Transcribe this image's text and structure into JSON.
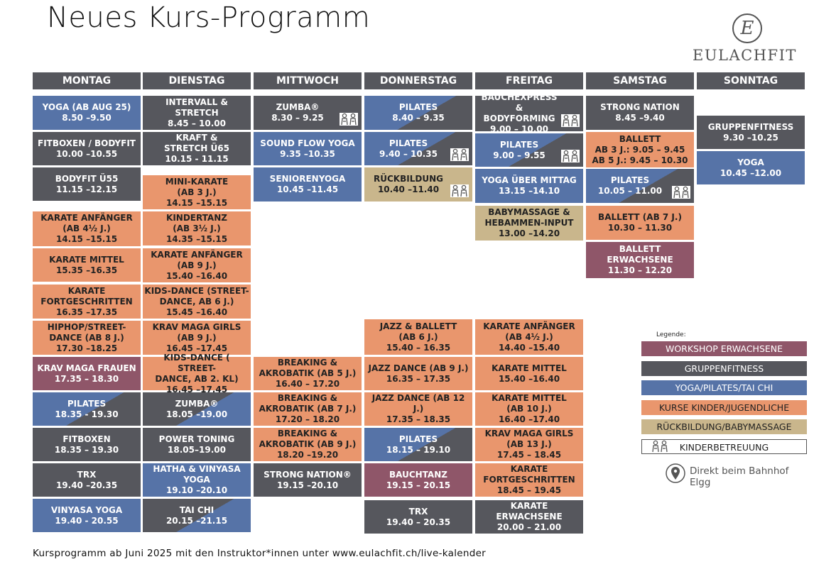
{
  "header": {
    "title": "Neues Kurs-Programm",
    "logo_letter": "E",
    "logo_name": "EULACHFIT"
  },
  "days": [
    {
      "name": "MONTAG",
      "classes": [
        {
          "lines": [
            "YOGA (AB AUG 25)",
            "8.50 –9.50"
          ],
          "color": "#5673a7"
        },
        {
          "lines": [
            "FITBOXEN / BODYFIT",
            "10.00 –10.55"
          ],
          "color": "#56575d"
        },
        {
          "lines": [
            "BODYFIT Ü55",
            "11.15 –12.15"
          ],
          "color": "#56575d"
        },
        {
          "lines": [
            "KARATE ANFÄNGER",
            "(AB 4½ J.)",
            "14.15 –15.15"
          ],
          "color": "#e9966d"
        },
        {
          "lines": [
            "KARATE MITTEL",
            "15.35 –16.35"
          ],
          "color": "#e9966d"
        },
        {
          "lines": [
            "KARATE",
            "FORTGESCHRITTEN",
            "16.35 –17.35"
          ],
          "color": "#e9966d"
        },
        {
          "lines": [
            "HIPHOP/STREET-",
            "DANCE (AB 8 J.)",
            "17.30 –18.25"
          ],
          "color": "#e9966d"
        },
        {
          "lines": [
            "KRAV MAGA FRAUEN",
            "17.35 – 18.30"
          ],
          "color": "#8f5669"
        },
        {
          "lines": [
            "PILATES",
            "18.35 - 19.30"
          ],
          "color": "#5673a7",
          "color2": "#56575d"
        },
        {
          "lines": [
            "FITBOXEN",
            "18.35 – 19.30"
          ],
          "color": "#56575d"
        },
        {
          "lines": [
            "TRX",
            "19.40 –20.35"
          ],
          "color": "#56575d"
        },
        {
          "lines": [
            "VINYASA YOGA",
            "19.40 - 20.55"
          ],
          "color": "#5673a7"
        }
      ]
    },
    {
      "name": "DIENSTAG",
      "classes": [
        {
          "lines": [
            "INTERVALL &",
            "STRETCH",
            "8.45 – 10.00"
          ],
          "color": "#56575d"
        },
        {
          "lines": [
            "KRAFT &",
            "STRETCH Ü65",
            "10.15 - 11.15"
          ],
          "color": "#56575d"
        },
        {
          "lines": [
            "MINI-KARATE",
            "(AB 3 J.)",
            "14.15 –15.15"
          ],
          "color": "#e9966d"
        },
        {
          "lines": [
            "KINDERTANZ",
            "(AB 3½ J.)",
            "14.35 –15.15"
          ],
          "color": "#e9966d"
        },
        {
          "lines": [
            "KARATE ANFÄNGER",
            "(AB 9 J.)",
            "15.40 –16.40"
          ],
          "color": "#e9966d"
        },
        {
          "lines": [
            "KIDS-DANCE (STREET-",
            "DANCE, AB 6 J.)",
            "15.45 –16.40"
          ],
          "color": "#e9966d"
        },
        {
          "lines": [
            "KRAV MAGA GIRLS",
            "(AB 9 J.)",
            "16.45 –17.45"
          ],
          "color": "#e9966d"
        },
        {
          "lines": [
            "KIDS-DANCE ( STREET-",
            "DANCE, AB 2. KL)",
            "16.45 –17.45"
          ],
          "color": "#e9966d"
        },
        {
          "lines": [
            "ZUMBA®",
            "18.05 –19.00"
          ],
          "color": "#56575d",
          "color2": "#5673a7"
        },
        {
          "lines": [
            "POWER TONING",
            "18.05–19.00"
          ],
          "color": "#56575d"
        },
        {
          "lines": [
            "HATHA & VINYASA",
            "YOGA",
            "19.10 –20.10"
          ],
          "color": "#5673a7"
        },
        {
          "lines": [
            "TAI CHI",
            "20.15 –21.15"
          ],
          "color": "#56575d",
          "color2": "#5673a7"
        }
      ]
    },
    {
      "name": "MITTWOCH",
      "classes": [
        {
          "lines": [
            "ZUMBA®",
            "8.30 – 9.25"
          ],
          "color": "#56575d",
          "kids": true
        },
        {
          "lines": [
            "SOUND FLOW YOGA",
            "9.35 –10.35"
          ],
          "color": "#5673a7"
        },
        {
          "lines": [
            "SENIORENYOGA",
            "10.45 –11.45"
          ],
          "color": "#5673a7"
        },
        {
          "lines": [
            "BREAKING &",
            "AKROBATIK (AB 5 J.)",
            "16.40 – 17.20"
          ],
          "color": "#e9966d"
        },
        {
          "lines": [
            "BREAKING &",
            "AKROBATIK (AB 7 J.)",
            "17.20 – 18.20"
          ],
          "color": "#e9966d"
        },
        {
          "lines": [
            "BREAKING &",
            "AKROBATIK (AB 9 J.)",
            "18.20 –19.20"
          ],
          "color": "#e9966d"
        },
        {
          "lines": [
            "STRONG NATION®",
            "19.15 –20.10"
          ],
          "color": "#56575d"
        }
      ]
    },
    {
      "name": "DONNERSTAG",
      "classes": [
        {
          "lines": [
            "PILATES",
            "8.40 – 9.35"
          ],
          "color": "#5673a7",
          "color2": "#56575d"
        },
        {
          "lines": [
            "PILATES",
            "9.40 – 10.35"
          ],
          "color": "#5673a7",
          "color2": "#56575d",
          "kids": true
        },
        {
          "lines": [
            "RÜCKBILDUNG",
            "10.40 –11.40"
          ],
          "color": "#c9b68c",
          "kids": true
        },
        {
          "lines": [
            "JAZZ & BALLETT",
            "(AB 6 J.)",
            "15.40 – 16.35"
          ],
          "color": "#e9966d"
        },
        {
          "lines": [
            "JAZZ DANCE (AB 9 J.)",
            "16.35 – 17.35"
          ],
          "color": "#e9966d"
        },
        {
          "lines": [
            "JAZZ DANCE (AB 12 J.)",
            "17.35 – 18.35"
          ],
          "color": "#e9966d"
        },
        {
          "lines": [
            "PILATES",
            "18.15 – 19.10"
          ],
          "color": "#5673a7",
          "color2": "#56575d"
        },
        {
          "lines": [
            "BAUCHTANZ",
            "19.15 – 20.15"
          ],
          "color": "#8f5669"
        },
        {
          "lines": [
            "TRX",
            "19.40 – 20.35"
          ],
          "color": "#56575d"
        }
      ]
    },
    {
      "name": "FREITAG",
      "classes": [
        {
          "lines": [
            "BAUCHEXPRESS &",
            "BODYFORMING",
            "9.00 – 10.00"
          ],
          "color": "#56575d",
          "kids": true
        },
        {
          "lines": [
            "PILATES",
            "9.00 – 9.55"
          ],
          "color": "#5673a7",
          "color2": "#56575d",
          "kids": true
        },
        {
          "lines": [
            "YOGA ÜBER MITTAG",
            "13.15 –14.10"
          ],
          "color": "#5673a7"
        },
        {
          "lines": [
            "BABYMASSAGE &",
            "HEBAMMEN-INPUT",
            "13.00 –14.20"
          ],
          "color": "#c9b68c"
        },
        {
          "lines": [
            "KARATE ANFÄNGER",
            "(AB 4½ J.)",
            "14.40 –15.40"
          ],
          "color": "#e9966d"
        },
        {
          "lines": [
            "KARATE MITTEL",
            "15.40 –16.40"
          ],
          "color": "#e9966d"
        },
        {
          "lines": [
            "KARATE MITTEL",
            "(AB 10 J.)",
            "16.40 –17.40"
          ],
          "color": "#e9966d"
        },
        {
          "lines": [
            "KRAV MAGA GIRLS",
            "(AB 13 J.)",
            "17.45 – 18.45"
          ],
          "color": "#e9966d"
        },
        {
          "lines": [
            "KARATE",
            "FORTGESCHRITTEN",
            "18.45 – 19.45"
          ],
          "color": "#e9966d"
        },
        {
          "lines": [
            "KARATE",
            "ERWACHSENE",
            "20.00 – 21.00"
          ],
          "color": "#56575d"
        }
      ]
    },
    {
      "name": "SAMSTAG",
      "classes": [
        {
          "lines": [
            "STRONG NATION",
            "8.45 –9.40"
          ],
          "color": "#56575d"
        },
        {
          "lines": [
            "BALLETT",
            "AB 3 J.: 9.05 – 9.45",
            "AB 5 J.: 9.45 – 10.30"
          ],
          "color": "#e9966d"
        },
        {
          "lines": [
            "PILATES",
            "10.05 – 11.00"
          ],
          "color": "#5673a7",
          "color2": "#56575d",
          "kids": true
        },
        {
          "lines": [
            "BALLETT (AB 7 J.)",
            "10.30 – 11.30"
          ],
          "color": "#e9966d"
        },
        {
          "lines": [
            "BALLETT",
            "ERWACHSENE",
            "11.30 – 12.20"
          ],
          "color": "#8f5669"
        }
      ]
    },
    {
      "name": "SONNTAG",
      "classes": [
        {
          "lines": [
            "GRUPPENFITNESS",
            "9.30 –10.25"
          ],
          "color": "#56575d"
        },
        {
          "lines": [
            "YOGA",
            "10.45 –12.00"
          ],
          "color": "#5673a7"
        }
      ]
    }
  ],
  "legend": {
    "title": "Legende:",
    "items": [
      {
        "label": "WORKSHOP ERWACHSENE",
        "color": "#8f5669"
      },
      {
        "label": "GRUPPENFITNESS",
        "color": "#56575d"
      },
      {
        "label": "YOGA/PILATES/TAI CHI",
        "color": "#5673a7"
      },
      {
        "label": "KURSE KINDER/JUGENDLICHE",
        "color": "#e9966d"
      },
      {
        "label": "RÜCKBILDUNG/BABYMASSAGE",
        "color": "#c9b68c"
      },
      {
        "label": "KINDERBETREUUNG",
        "color": "#ffffff",
        "kids": true
      }
    ]
  },
  "location": {
    "lines": [
      "Direkt beim Bahnhof",
      "Elgg"
    ]
  },
  "footer": "Kursprogramm ab Juni 2025 mit den Instruktor*innen unter www.eulachfit.ch/live-kalender"
}
